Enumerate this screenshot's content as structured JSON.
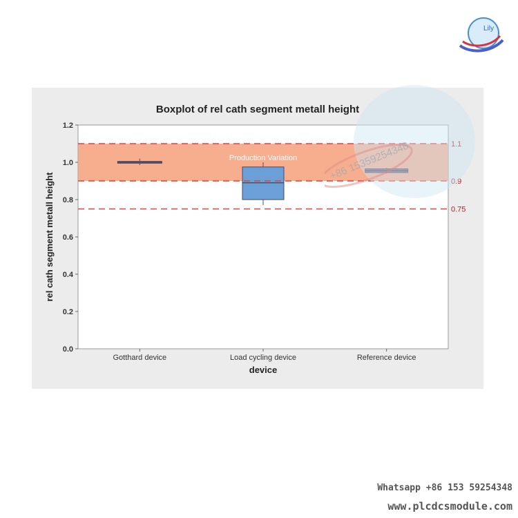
{
  "chart_data": {
    "type": "boxplot",
    "title": "Boxplot of rel cath segment metall height",
    "xlabel": "device",
    "ylabel": "rel cath segment metall height",
    "ylim": [
      0.0,
      1.2
    ],
    "yticks": [
      "0.0",
      "0.2",
      "0.4",
      "0.6",
      "0.8",
      "1.0",
      "1.2"
    ],
    "categories": [
      "Gotthard device",
      "Load cycling device",
      "Reference device"
    ],
    "boxes": [
      {
        "category": "Gotthard device",
        "q1": 0.995,
        "median": 1.0,
        "q3": 1.005,
        "whisker_low": 0.985,
        "whisker_high": 1.02,
        "color": "#8e6a8e"
      },
      {
        "category": "Load cycling device",
        "q1": 0.8,
        "median": 0.89,
        "q3": 0.975,
        "whisker_low": 0.77,
        "whisker_high": 1.0,
        "color": "#6a9fd8"
      },
      {
        "category": "Reference device",
        "q1": 0.945,
        "median": 0.955,
        "q3": 0.965,
        "whisker_low": 0.94,
        "whisker_high": 0.97,
        "color": "#8e6a8e"
      }
    ],
    "reference_lines": [
      {
        "value": 1.1,
        "label": "1.1"
      },
      {
        "value": 0.9,
        "label": "0.9"
      },
      {
        "value": 0.75,
        "label": "0.75"
      }
    ],
    "band": {
      "from": 0.9,
      "to": 1.1,
      "label": "Production Variation",
      "color": "#f4a07a"
    },
    "grid": false
  },
  "watermark": {
    "whatsapp": "Whatsapp +86 153 59254348",
    "website": "www.plcdcsmodule.com",
    "stamp_text": "+86 15359254348",
    "logo_text": "Lily"
  },
  "colors": {
    "reference_line": "#e04040",
    "band": "#f4a07a",
    "panel_bg": "#ececec"
  }
}
